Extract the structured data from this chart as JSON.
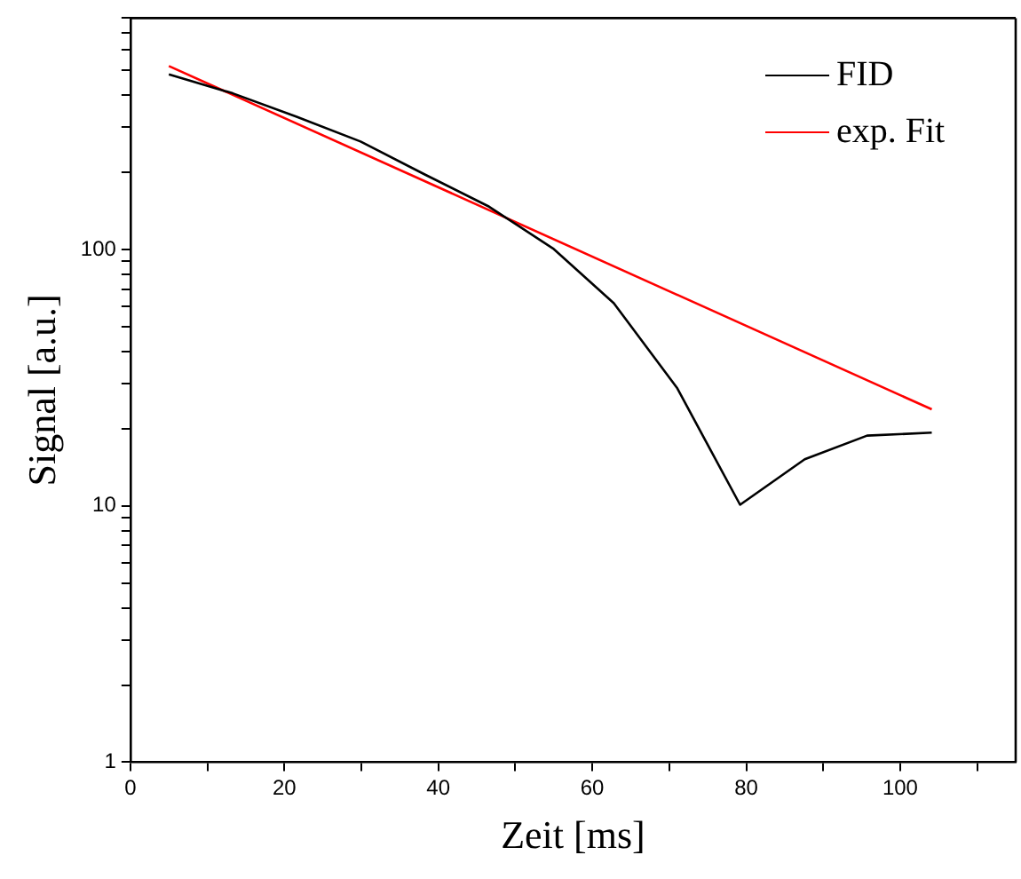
{
  "chart_data": {
    "type": "line",
    "xlabel": "Zeit [ms]",
    "ylabel": "Signal [a.u.]",
    "log": "y",
    "grid": false,
    "legend": "top right",
    "marker": "none",
    "line_style": "solid",
    "xlim": [
      0,
      115
    ],
    "xticks": [
      0,
      {
        "value": 10,
        "label": null
      },
      20,
      {
        "value": 30,
        "label": null
      },
      40,
      {
        "value": 50,
        "label": null
      },
      60,
      {
        "value": 70,
        "label": null
      },
      80,
      {
        "value": 90,
        "label": null
      },
      100,
      {
        "value": 110,
        "label": null
      }
    ],
    "ylim": [
      1,
      800
    ],
    "yticks": [
      1,
      {
        "value": 2,
        "label": null
      },
      {
        "value": 3,
        "label": null
      },
      {
        "value": 4,
        "label": null
      },
      {
        "value": 5,
        "label": null
      },
      {
        "value": 6,
        "label": null
      },
      {
        "value": 7,
        "label": null
      },
      {
        "value": 8,
        "label": null
      },
      {
        "value": 9,
        "label": null
      },
      10,
      {
        "value": 20,
        "label": null
      },
      {
        "value": 30,
        "label": null
      },
      {
        "value": 40,
        "label": null
      },
      {
        "value": 50,
        "label": null
      },
      {
        "value": 60,
        "label": null
      },
      {
        "value": 70,
        "label": null
      },
      {
        "value": 80,
        "label": null
      },
      {
        "value": 90,
        "label": null
      },
      100,
      {
        "value": 200,
        "label": null
      },
      {
        "value": 300,
        "label": null
      },
      {
        "value": 400,
        "label": null
      },
      {
        "value": 500,
        "label": null
      },
      {
        "value": 600,
        "label": null
      },
      {
        "value": 700,
        "label": null
      },
      {
        "value": 800,
        "label": null
      }
    ],
    "series": [
      {
        "name": "FID",
        "color": "#000000",
        "x": [
          5,
          13.3,
          21.6,
          29.9,
          38.3,
          46.6,
          54.9,
          62.8,
          71,
          79.2,
          87.6,
          95.7,
          104.1
        ],
        "values": [
          483,
          407,
          330,
          264,
          196,
          147,
          101,
          61.8,
          28.9,
          10.1,
          15.2,
          18.8,
          19.3
        ]
      },
      {
        "name": "exp. Fit",
        "color": "#ff0000",
        "x": [
          5,
          104.1
        ],
        "values": [
          520,
          23.8
        ]
      }
    ]
  }
}
